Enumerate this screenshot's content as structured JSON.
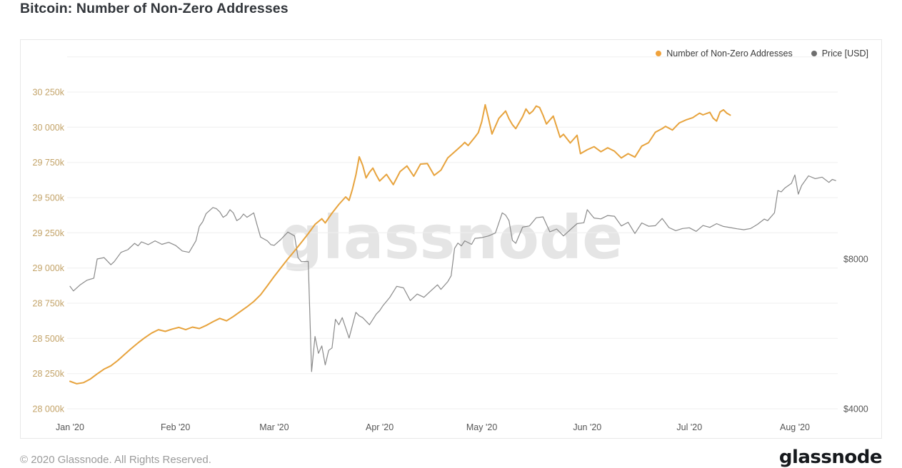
{
  "page": {
    "title": "Bitcoin: Number of Non-Zero Addresses",
    "watermark": "glassnode",
    "footer": {
      "copyright": "© 2020 Glassnode. All Rights Reserved.",
      "brand": "glassnode"
    }
  },
  "legend": [
    {
      "label": "Number of Non-Zero Addresses",
      "color": "#f0a23c"
    },
    {
      "label": "Price [USD]",
      "color": "#6e6e6e"
    }
  ],
  "chart_data": {
    "type": "line",
    "title": "Bitcoin: Number of Non-Zero Addresses",
    "grid": "horizontal-only",
    "legend_position": "top-right",
    "x_axis": {
      "unit": "date",
      "start": "2020-01-01",
      "end": "2020-08-13",
      "ticks": [
        {
          "day": 0,
          "label": "Jan '20"
        },
        {
          "day": 31,
          "label": "Feb '20"
        },
        {
          "day": 60,
          "label": "Mar '20"
        },
        {
          "day": 91,
          "label": "Apr '20"
        },
        {
          "day": 121,
          "label": "May '20"
        },
        {
          "day": 152,
          "label": "Jun '20"
        },
        {
          "day": 182,
          "label": "Jul '20"
        },
        {
          "day": 213,
          "label": "Aug '20"
        }
      ]
    },
    "left_axis": {
      "title": "Number of Non-Zero Addresses",
      "unit": "k = thousands of addresses",
      "min": 28000,
      "max": 30500,
      "label_color": "#c3a368",
      "ticks": [
        {
          "value": 30250,
          "label": "30 250k"
        },
        {
          "value": 30000,
          "label": "30 000k"
        },
        {
          "value": 29750,
          "label": "29 750k"
        },
        {
          "value": 29500,
          "label": "29 500k"
        },
        {
          "value": 29250,
          "label": "29 250k"
        },
        {
          "value": 29000,
          "label": "29 000k"
        },
        {
          "value": 28750,
          "label": "28 750k"
        },
        {
          "value": 28500,
          "label": "28 500k"
        },
        {
          "value": 28250,
          "label": "28 250k"
        },
        {
          "value": 28000,
          "label": "28 000k"
        }
      ],
      "gridlines": [
        30500,
        30250,
        30000,
        29750,
        29500,
        29250,
        29000,
        28750,
        28500,
        28250,
        28000
      ]
    },
    "right_axis": {
      "title": "Price [USD]",
      "scale": "log",
      "label_color": "#555555",
      "ticks": [
        {
          "value": 8000,
          "label": "$8000"
        },
        {
          "value": 4000,
          "label": "$4000"
        }
      ]
    },
    "series": [
      {
        "name": "Number of Non-Zero Addresses",
        "axis": "left",
        "color": "#e7a33d",
        "stroke_width": 2,
        "unit": "thousand addresses",
        "points_day_value": [
          [
            0,
            28195
          ],
          [
            2,
            28178
          ],
          [
            4,
            28186
          ],
          [
            6,
            28212
          ],
          [
            8,
            28248
          ],
          [
            10,
            28282
          ],
          [
            12,
            28305
          ],
          [
            14,
            28342
          ],
          [
            16,
            28385
          ],
          [
            18,
            28428
          ],
          [
            20,
            28468
          ],
          [
            22,
            28505
          ],
          [
            24,
            28538
          ],
          [
            26,
            28562
          ],
          [
            28,
            28550
          ],
          [
            30,
            28566
          ],
          [
            32,
            28578
          ],
          [
            34,
            28562
          ],
          [
            36,
            28580
          ],
          [
            38,
            28570
          ],
          [
            40,
            28592
          ],
          [
            42,
            28618
          ],
          [
            44,
            28642
          ],
          [
            46,
            28625
          ],
          [
            48,
            28655
          ],
          [
            50,
            28690
          ],
          [
            52,
            28724
          ],
          [
            54,
            28762
          ],
          [
            56,
            28810
          ],
          [
            58,
            28874
          ],
          [
            60,
            28940
          ],
          [
            62,
            29002
          ],
          [
            64,
            29064
          ],
          [
            66,
            29122
          ],
          [
            68,
            29182
          ],
          [
            70,
            29244
          ],
          [
            72,
            29310
          ],
          [
            74,
            29350
          ],
          [
            75,
            29320
          ],
          [
            77,
            29390
          ],
          [
            79,
            29452
          ],
          [
            81,
            29505
          ],
          [
            82,
            29480
          ],
          [
            83,
            29560
          ],
          [
            84,
            29660
          ],
          [
            85,
            29790
          ],
          [
            86,
            29730
          ],
          [
            87,
            29640
          ],
          [
            88,
            29680
          ],
          [
            89,
            29710
          ],
          [
            90,
            29660
          ],
          [
            91,
            29618
          ],
          [
            93,
            29665
          ],
          [
            95,
            29592
          ],
          [
            97,
            29685
          ],
          [
            99,
            29725
          ],
          [
            101,
            29652
          ],
          [
            103,
            29738
          ],
          [
            105,
            29742
          ],
          [
            107,
            29658
          ],
          [
            109,
            29695
          ],
          [
            111,
            29782
          ],
          [
            113,
            29825
          ],
          [
            115,
            29868
          ],
          [
            116,
            29892
          ],
          [
            117,
            29870
          ],
          [
            119,
            29930
          ],
          [
            120,
            29962
          ],
          [
            121,
            30040
          ],
          [
            122,
            30160
          ],
          [
            123,
            30060
          ],
          [
            124,
            29952
          ],
          [
            126,
            30062
          ],
          [
            128,
            30115
          ],
          [
            129,
            30060
          ],
          [
            130,
            30018
          ],
          [
            131,
            29990
          ],
          [
            133,
            30075
          ],
          [
            134,
            30130
          ],
          [
            135,
            30095
          ],
          [
            136,
            30115
          ],
          [
            137,
            30150
          ],
          [
            138,
            30140
          ],
          [
            139,
            30085
          ],
          [
            140,
            30023
          ],
          [
            142,
            30079
          ],
          [
            144,
            29928
          ],
          [
            145,
            29950
          ],
          [
            147,
            29888
          ],
          [
            149,
            29943
          ],
          [
            150,
            29812
          ],
          [
            152,
            29840
          ],
          [
            154,
            29862
          ],
          [
            156,
            29826
          ],
          [
            158,
            29854
          ],
          [
            160,
            29830
          ],
          [
            162,
            29782
          ],
          [
            164,
            29812
          ],
          [
            166,
            29788
          ],
          [
            168,
            29866
          ],
          [
            170,
            29890
          ],
          [
            172,
            29964
          ],
          [
            174,
            29990
          ],
          [
            175,
            30006
          ],
          [
            177,
            29980
          ],
          [
            179,
            30030
          ],
          [
            181,
            30052
          ],
          [
            183,
            30068
          ],
          [
            185,
            30100
          ],
          [
            186,
            30088
          ],
          [
            188,
            30106
          ],
          [
            189,
            30064
          ],
          [
            190,
            30044
          ],
          [
            191,
            30108
          ],
          [
            192,
            30124
          ],
          [
            193,
            30100
          ],
          [
            194,
            30086
          ]
        ]
      },
      {
        "name": "Price [USD]",
        "axis": "right",
        "color": "#8a8a8a",
        "stroke_width": 1.2,
        "unit": "USD",
        "points_day_value": [
          [
            0,
            7050
          ],
          [
            1,
            6900
          ],
          [
            3,
            7100
          ],
          [
            5,
            7250
          ],
          [
            7,
            7320
          ],
          [
            8,
            8000
          ],
          [
            10,
            8050
          ],
          [
            12,
            7790
          ],
          [
            13,
            7900
          ],
          [
            15,
            8250
          ],
          [
            17,
            8350
          ],
          [
            19,
            8600
          ],
          [
            20,
            8500
          ],
          [
            21,
            8660
          ],
          [
            23,
            8550
          ],
          [
            25,
            8700
          ],
          [
            27,
            8560
          ],
          [
            29,
            8640
          ],
          [
            31,
            8520
          ],
          [
            33,
            8300
          ],
          [
            35,
            8250
          ],
          [
            37,
            8700
          ],
          [
            38,
            9300
          ],
          [
            39,
            9500
          ],
          [
            40,
            9870
          ],
          [
            42,
            10150
          ],
          [
            43,
            10100
          ],
          [
            44,
            9950
          ],
          [
            45,
            9700
          ],
          [
            46,
            9800
          ],
          [
            47,
            10050
          ],
          [
            48,
            9900
          ],
          [
            49,
            9550
          ],
          [
            50,
            9650
          ],
          [
            51,
            9850
          ],
          [
            52,
            9700
          ],
          [
            54,
            9900
          ],
          [
            55,
            9350
          ],
          [
            56,
            8850
          ],
          [
            58,
            8700
          ],
          [
            59,
            8550
          ],
          [
            60,
            8520
          ],
          [
            62,
            8760
          ],
          [
            64,
            9060
          ],
          [
            66,
            8900
          ],
          [
            67,
            8050
          ],
          [
            68,
            7900
          ],
          [
            70,
            7910
          ],
          [
            71,
            4750
          ],
          [
            72,
            5590
          ],
          [
            73,
            5170
          ],
          [
            74,
            5350
          ],
          [
            75,
            4900
          ],
          [
            76,
            5240
          ],
          [
            77,
            5300
          ],
          [
            78,
            6050
          ],
          [
            79,
            5900
          ],
          [
            80,
            6100
          ],
          [
            82,
            5550
          ],
          [
            84,
            6250
          ],
          [
            85,
            6150
          ],
          [
            86,
            6100
          ],
          [
            88,
            5900
          ],
          [
            90,
            6200
          ],
          [
            91,
            6300
          ],
          [
            92,
            6450
          ],
          [
            94,
            6700
          ],
          [
            96,
            7050
          ],
          [
            98,
            7000
          ],
          [
            100,
            6600
          ],
          [
            102,
            6800
          ],
          [
            104,
            6700
          ],
          [
            106,
            6900
          ],
          [
            108,
            7100
          ],
          [
            109,
            6950
          ],
          [
            111,
            7200
          ],
          [
            112,
            7400
          ],
          [
            113,
            8400
          ],
          [
            114,
            8610
          ],
          [
            115,
            8500
          ],
          [
            116,
            8700
          ],
          [
            118,
            8560
          ],
          [
            119,
            8800
          ],
          [
            121,
            8830
          ],
          [
            123,
            8900
          ],
          [
            125,
            9020
          ],
          [
            127,
            9900
          ],
          [
            128,
            9800
          ],
          [
            129,
            9550
          ],
          [
            130,
            8720
          ],
          [
            131,
            8600
          ],
          [
            133,
            9270
          ],
          [
            135,
            9320
          ],
          [
            137,
            9680
          ],
          [
            139,
            9720
          ],
          [
            141,
            9070
          ],
          [
            143,
            9190
          ],
          [
            145,
            8900
          ],
          [
            147,
            9160
          ],
          [
            149,
            9420
          ],
          [
            151,
            9460
          ],
          [
            152,
            10050
          ],
          [
            153,
            9850
          ],
          [
            154,
            9670
          ],
          [
            156,
            9630
          ],
          [
            158,
            9780
          ],
          [
            160,
            9750
          ],
          [
            162,
            9320
          ],
          [
            164,
            9480
          ],
          [
            166,
            9000
          ],
          [
            168,
            9450
          ],
          [
            170,
            9310
          ],
          [
            172,
            9330
          ],
          [
            174,
            9650
          ],
          [
            176,
            9250
          ],
          [
            178,
            9120
          ],
          [
            180,
            9210
          ],
          [
            182,
            9240
          ],
          [
            184,
            9090
          ],
          [
            186,
            9340
          ],
          [
            188,
            9260
          ],
          [
            190,
            9420
          ],
          [
            192,
            9300
          ],
          [
            194,
            9250
          ],
          [
            196,
            9200
          ],
          [
            198,
            9160
          ],
          [
            200,
            9210
          ],
          [
            202,
            9390
          ],
          [
            204,
            9620
          ],
          [
            205,
            9550
          ],
          [
            207,
            9900
          ],
          [
            208,
            10980
          ],
          [
            209,
            10910
          ],
          [
            210,
            11100
          ],
          [
            212,
            11350
          ],
          [
            213,
            11800
          ],
          [
            214,
            10800
          ],
          [
            215,
            11240
          ],
          [
            217,
            11750
          ],
          [
            219,
            11600
          ],
          [
            221,
            11680
          ],
          [
            223,
            11400
          ],
          [
            224,
            11560
          ],
          [
            225,
            11500
          ]
        ]
      }
    ]
  }
}
